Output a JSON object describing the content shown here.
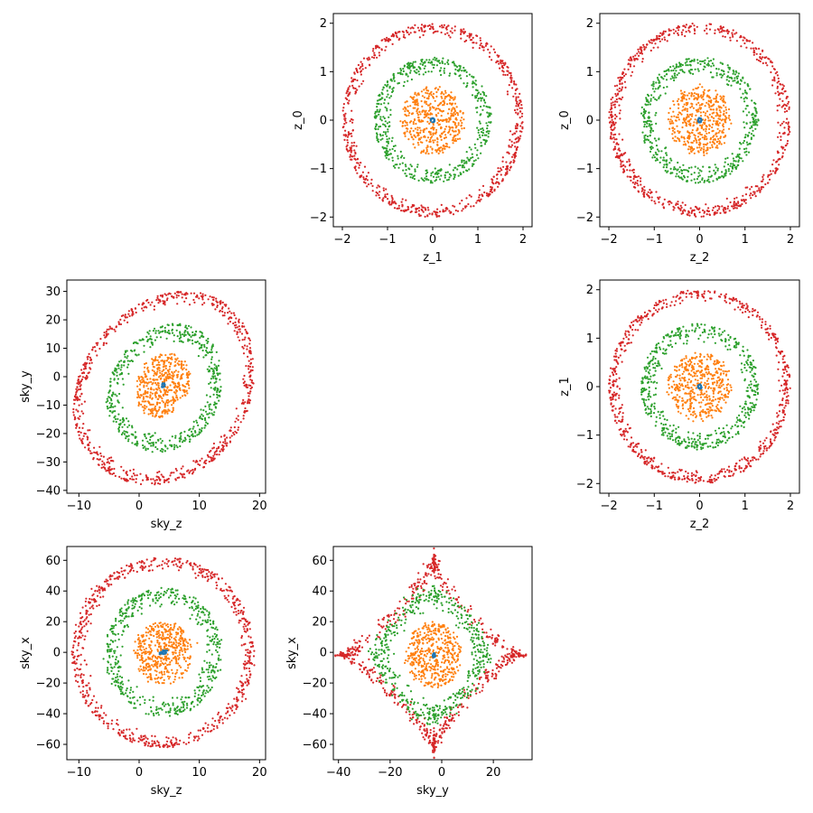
{
  "chart_data": [
    {
      "type": "scatter",
      "xlabel": "z_1",
      "ylabel": "z_0",
      "xlim": [
        -2.2,
        2.2
      ],
      "ylim": [
        -2.2,
        2.2
      ],
      "xticks": [
        -2,
        -1,
        0,
        1,
        2
      ],
      "yticks": [
        -2,
        -1,
        0,
        1,
        2
      ],
      "shape": "circle",
      "series": [
        {
          "color": "#1f77b4",
          "radius": 0.05,
          "fill": "center"
        },
        {
          "color": "#ff7f0e",
          "radius": 0.7,
          "fill": "disk"
        },
        {
          "color": "#2ca02c",
          "radius": 1.3,
          "fill": "ring"
        },
        {
          "color": "#d62728",
          "radius": 2.0,
          "fill": "ring"
        }
      ]
    },
    {
      "type": "scatter",
      "xlabel": "z_2",
      "ylabel": "z_0",
      "xlim": [
        -2.2,
        2.2
      ],
      "ylim": [
        -2.2,
        2.2
      ],
      "xticks": [
        -2,
        -1,
        0,
        1,
        2
      ],
      "yticks": [
        -2,
        -1,
        0,
        1,
        2
      ],
      "shape": "circle",
      "series": [
        {
          "color": "#1f77b4",
          "radius": 0.05,
          "fill": "center"
        },
        {
          "color": "#ff7f0e",
          "radius": 0.7,
          "fill": "disk"
        },
        {
          "color": "#2ca02c",
          "radius": 1.3,
          "fill": "ring"
        },
        {
          "color": "#d62728",
          "radius": 2.0,
          "fill": "ring"
        }
      ]
    },
    {
      "type": "scatter",
      "xlabel": "sky_z",
      "ylabel": "sky_y",
      "xlim": [
        -12,
        21
      ],
      "ylim": [
        -41,
        34
      ],
      "xticks": [
        -10,
        0,
        10,
        20
      ],
      "yticks": [
        -40,
        -30,
        -20,
        -10,
        0,
        10,
        20,
        30
      ],
      "shape": "sheared_blob",
      "series": [
        {
          "color": "#1f77b4",
          "cx": 4,
          "cy": -3,
          "rx": 0.3,
          "ry": 0.8,
          "fill": "center"
        },
        {
          "color": "#ff7f0e",
          "cx": 4,
          "cy": -3,
          "rx": 4.5,
          "ry": 11,
          "fill": "disk"
        },
        {
          "color": "#2ca02c",
          "cx": 4,
          "cy": -4,
          "rx": 9.5,
          "ry": 22,
          "fill": "ring"
        },
        {
          "color": "#d62728",
          "cx": 4,
          "cy": -4,
          "rx": 15,
          "ry": 33,
          "fill": "ring"
        }
      ]
    },
    {
      "type": "scatter",
      "xlabel": "z_2",
      "ylabel": "z_1",
      "xlim": [
        -2.2,
        2.2
      ],
      "ylim": [
        -2.2,
        2.2
      ],
      "xticks": [
        -2,
        -1,
        0,
        1,
        2
      ],
      "yticks": [
        -2,
        -1,
        0,
        1,
        2
      ],
      "shape": "circle",
      "series": [
        {
          "color": "#1f77b4",
          "radius": 0.05,
          "fill": "center"
        },
        {
          "color": "#ff7f0e",
          "radius": 0.7,
          "fill": "disk"
        },
        {
          "color": "#2ca02c",
          "radius": 1.3,
          "fill": "ring"
        },
        {
          "color": "#d62728",
          "radius": 2.0,
          "fill": "ring"
        }
      ]
    },
    {
      "type": "scatter",
      "xlabel": "sky_z",
      "ylabel": "sky_x",
      "xlim": [
        -12,
        21
      ],
      "ylim": [
        -70,
        69
      ],
      "xticks": [
        -10,
        0,
        10,
        20
      ],
      "yticks": [
        -60,
        -40,
        -20,
        0,
        20,
        40,
        60
      ],
      "shape": "ellipse",
      "series": [
        {
          "color": "#1f77b4",
          "cx": 4,
          "cy": 0,
          "rx": 0.3,
          "ry": 1.5,
          "fill": "center"
        },
        {
          "color": "#ff7f0e",
          "cx": 4,
          "cy": 0,
          "rx": 4.8,
          "ry": 20,
          "fill": "disk"
        },
        {
          "color": "#2ca02c",
          "cx": 4,
          "cy": 0,
          "rx": 9.5,
          "ry": 42,
          "fill": "ring"
        },
        {
          "color": "#d62728",
          "cx": 4,
          "cy": 0,
          "rx": 15,
          "ry": 62,
          "fill": "ring"
        }
      ]
    },
    {
      "type": "scatter",
      "xlabel": "sky_y",
      "ylabel": "sky_x",
      "xlim": [
        -42,
        35
      ],
      "ylim": [
        -70,
        69
      ],
      "xticks": [
        -40,
        -20,
        0,
        20
      ],
      "yticks": [
        -60,
        -40,
        -20,
        0,
        20,
        40,
        60
      ],
      "shape": "astroid",
      "series": [
        {
          "color": "#1f77b4",
          "cx": -3,
          "cy": -2,
          "rx": 0.6,
          "ry": 1.5,
          "fill": "center"
        },
        {
          "color": "#ff7f0e",
          "cx": -3,
          "cy": -2,
          "rx": 11,
          "ry": 21,
          "fill": "disk"
        },
        {
          "color": "#2ca02c",
          "cx": -3,
          "cy": -2,
          "left": 24,
          "right": 21,
          "top": 44,
          "bottom": 44,
          "exp": 1.4,
          "fill": "ring"
        },
        {
          "color": "#d62728",
          "cx": -3,
          "cy": -2,
          "left": 37,
          "right": 34,
          "top": 64,
          "bottom": 62,
          "exp": 2.4,
          "fill": "ring"
        }
      ]
    }
  ]
}
